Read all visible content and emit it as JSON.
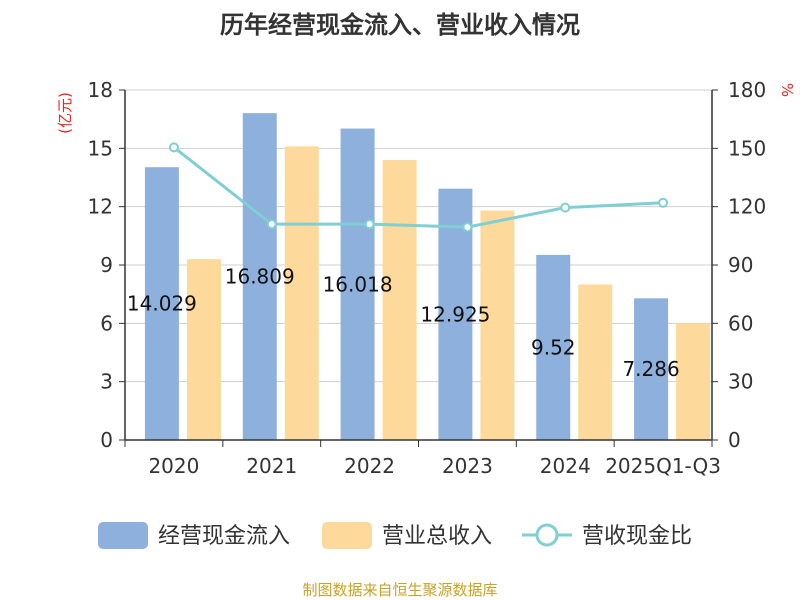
{
  "colors": {
    "series_bar_1": "#8eb0dd",
    "series_bar_2": "#fdd99b",
    "series_line": "#7fcfd3",
    "grid": "#d0d0d0",
    "axis": "#333333",
    "unit_red": "#e8251f",
    "source": "#c9a227"
  },
  "chart_data": {
    "type": "bar",
    "title": "历年经营现金流入、营业收入情况",
    "categories": [
      "2020",
      "2021",
      "2022",
      "2023",
      "2024",
      "2025Q1-Q3"
    ],
    "left_axis": {
      "unit_label": "(亿元)",
      "ylim": [
        0,
        18
      ],
      "ticks": [
        "0",
        "3",
        "6",
        "9",
        "12",
        "15",
        "18"
      ]
    },
    "right_axis": {
      "unit_label": "%",
      "ylim": [
        0,
        180
      ],
      "ticks": [
        "0",
        "30",
        "60",
        "90",
        "120",
        "150",
        "180"
      ]
    },
    "series": [
      {
        "name": "经营现金流入",
        "kind": "bar",
        "axis": "left",
        "values": [
          14.029,
          16.809,
          16.018,
          12.925,
          9.52,
          7.286
        ],
        "labels": [
          "14.029",
          "16.809",
          "16.018",
          "12.925",
          "9.52",
          "7.286"
        ]
      },
      {
        "name": "营业总收入",
        "kind": "bar",
        "axis": "left",
        "values": [
          9.3,
          15.1,
          14.4,
          11.8,
          8.0,
          6.0
        ]
      },
      {
        "name": "营收现金比",
        "kind": "line",
        "axis": "right",
        "values": [
          150.5,
          111.0,
          111.0,
          109.5,
          119.5,
          122.0
        ]
      }
    ],
    "grid": true,
    "legend_position": "bottom"
  },
  "source_note": "制图数据来自恒生聚源数据库"
}
